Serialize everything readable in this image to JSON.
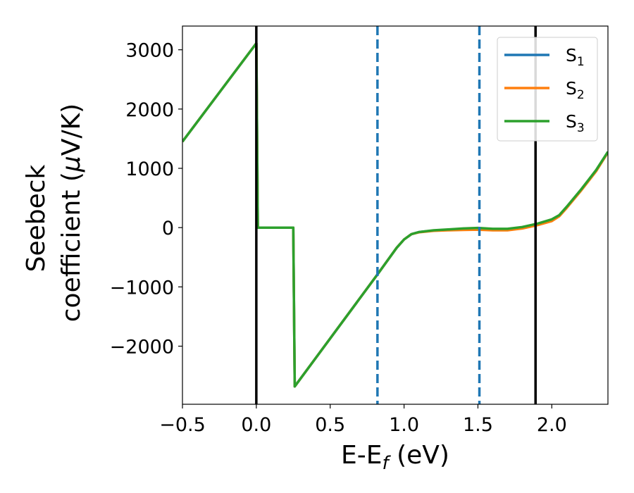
{
  "chart_data": {
    "type": "line",
    "xlabel_main": "E-E",
    "xlabel_sub": "f",
    "xlabel_unit": " (eV)",
    "ylabel_line1": "Seebeck",
    "ylabel_line2": "coefficient  (",
    "ylabel_mu": "μ",
    "ylabel_unit": "V/K)",
    "xlim": [
      -0.5,
      2.38
    ],
    "ylim": [
      -2980,
      3400
    ],
    "x_ticks": [
      -0.5,
      0.0,
      0.5,
      1.0,
      1.5,
      2.0
    ],
    "x_tick_labels": [
      "−0.5",
      "0.0",
      "0.5",
      "1.0",
      "1.5",
      "2.0"
    ],
    "y_ticks": [
      -2000,
      -1000,
      0,
      1000,
      2000,
      3000
    ],
    "y_tick_labels": [
      "−2000",
      "−1000",
      "0",
      "1000",
      "2000",
      "3000"
    ],
    "vertical_lines": [
      {
        "x": 0.0,
        "style": "solid",
        "color": "#000000"
      },
      {
        "x": 0.82,
        "style": "dashed",
        "color": "#1f77b4"
      },
      {
        "x": 1.51,
        "style": "dashed",
        "color": "#1f77b4"
      },
      {
        "x": 1.89,
        "style": "solid",
        "color": "#000000"
      }
    ],
    "legend_position": "top-right",
    "series": [
      {
        "name": "S",
        "sub": "1",
        "color": "#1f77b4",
        "points": [
          [
            -0.5,
            1450
          ],
          [
            0.0,
            3110
          ],
          [
            0.01,
            0
          ],
          [
            0.25,
            0
          ],
          [
            0.26,
            -2680
          ],
          [
            0.82,
            -790
          ],
          [
            0.95,
            -340
          ],
          [
            1.0,
            -200
          ],
          [
            1.05,
            -110
          ],
          [
            1.1,
            -75
          ],
          [
            1.2,
            -50
          ],
          [
            1.3,
            -35
          ],
          [
            1.4,
            -25
          ],
          [
            1.5,
            -20
          ],
          [
            1.6,
            -25
          ],
          [
            1.7,
            -30
          ],
          [
            1.8,
            0
          ],
          [
            1.9,
            50
          ],
          [
            2.0,
            130
          ],
          [
            2.05,
            200
          ],
          [
            2.1,
            340
          ],
          [
            2.2,
            640
          ],
          [
            2.3,
            960
          ],
          [
            2.38,
            1270
          ]
        ]
      },
      {
        "name": "S",
        "sub": "2",
        "color": "#ff7f0e",
        "points": [
          [
            -0.5,
            1450
          ],
          [
            0.0,
            3110
          ],
          [
            0.01,
            0
          ],
          [
            0.25,
            0
          ],
          [
            0.26,
            -2680
          ],
          [
            0.82,
            -790
          ],
          [
            0.95,
            -340
          ],
          [
            1.0,
            -200
          ],
          [
            1.05,
            -110
          ],
          [
            1.1,
            -80
          ],
          [
            1.2,
            -55
          ],
          [
            1.3,
            -45
          ],
          [
            1.4,
            -40
          ],
          [
            1.5,
            -35
          ],
          [
            1.6,
            -45
          ],
          [
            1.7,
            -45
          ],
          [
            1.8,
            -15
          ],
          [
            1.9,
            40
          ],
          [
            2.0,
            110
          ],
          [
            2.05,
            190
          ],
          [
            2.1,
            330
          ],
          [
            2.2,
            630
          ],
          [
            2.3,
            950
          ],
          [
            2.38,
            1270
          ]
        ]
      },
      {
        "name": "S",
        "sub": "3",
        "color": "#2ca02c",
        "points": [
          [
            -0.5,
            1450
          ],
          [
            0.0,
            3110
          ],
          [
            0.01,
            0
          ],
          [
            0.25,
            0
          ],
          [
            0.26,
            -2680
          ],
          [
            0.82,
            -790
          ],
          [
            0.95,
            -340
          ],
          [
            1.0,
            -200
          ],
          [
            1.05,
            -110
          ],
          [
            1.1,
            -75
          ],
          [
            1.2,
            -45
          ],
          [
            1.3,
            -30
          ],
          [
            1.4,
            -15
          ],
          [
            1.5,
            -5
          ],
          [
            1.6,
            -20
          ],
          [
            1.7,
            -20
          ],
          [
            1.8,
            10
          ],
          [
            1.9,
            65
          ],
          [
            2.0,
            140
          ],
          [
            2.05,
            210
          ],
          [
            2.1,
            350
          ],
          [
            2.2,
            650
          ],
          [
            2.3,
            970
          ],
          [
            2.38,
            1280
          ]
        ]
      }
    ]
  }
}
